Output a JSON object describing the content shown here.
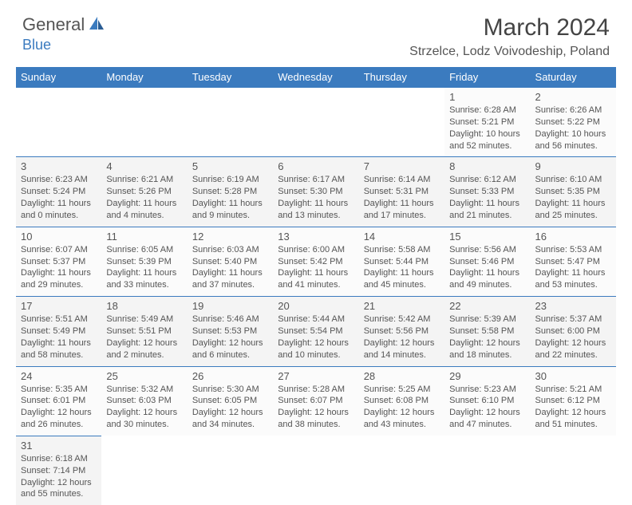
{
  "logo": {
    "general": "General",
    "blue": "Blue"
  },
  "title": "March 2024",
  "location": "Strzelce, Lodz Voivodeship, Poland",
  "colors": {
    "header_bg": "#3b7bbf",
    "header_fg": "#ffffff",
    "cell_border": "#3b7bbf",
    "cell_bg_odd": "#fbfbfb",
    "cell_bg_even": "#f4f4f4",
    "text": "#555555"
  },
  "day_headers": [
    "Sunday",
    "Monday",
    "Tuesday",
    "Wednesday",
    "Thursday",
    "Friday",
    "Saturday"
  ],
  "weeks": [
    [
      {
        "empty": true
      },
      {
        "empty": true
      },
      {
        "empty": true
      },
      {
        "empty": true
      },
      {
        "empty": true
      },
      {
        "n": "1",
        "sr": "Sunrise: 6:28 AM",
        "ss": "Sunset: 5:21 PM",
        "d1": "Daylight: 10 hours",
        "d2": "and 52 minutes."
      },
      {
        "n": "2",
        "sr": "Sunrise: 6:26 AM",
        "ss": "Sunset: 5:22 PM",
        "d1": "Daylight: 10 hours",
        "d2": "and 56 minutes."
      }
    ],
    [
      {
        "n": "3",
        "sr": "Sunrise: 6:23 AM",
        "ss": "Sunset: 5:24 PM",
        "d1": "Daylight: 11 hours",
        "d2": "and 0 minutes."
      },
      {
        "n": "4",
        "sr": "Sunrise: 6:21 AM",
        "ss": "Sunset: 5:26 PM",
        "d1": "Daylight: 11 hours",
        "d2": "and 4 minutes."
      },
      {
        "n": "5",
        "sr": "Sunrise: 6:19 AM",
        "ss": "Sunset: 5:28 PM",
        "d1": "Daylight: 11 hours",
        "d2": "and 9 minutes."
      },
      {
        "n": "6",
        "sr": "Sunrise: 6:17 AM",
        "ss": "Sunset: 5:30 PM",
        "d1": "Daylight: 11 hours",
        "d2": "and 13 minutes."
      },
      {
        "n": "7",
        "sr": "Sunrise: 6:14 AM",
        "ss": "Sunset: 5:31 PM",
        "d1": "Daylight: 11 hours",
        "d2": "and 17 minutes."
      },
      {
        "n": "8",
        "sr": "Sunrise: 6:12 AM",
        "ss": "Sunset: 5:33 PM",
        "d1": "Daylight: 11 hours",
        "d2": "and 21 minutes."
      },
      {
        "n": "9",
        "sr": "Sunrise: 6:10 AM",
        "ss": "Sunset: 5:35 PM",
        "d1": "Daylight: 11 hours",
        "d2": "and 25 minutes."
      }
    ],
    [
      {
        "n": "10",
        "sr": "Sunrise: 6:07 AM",
        "ss": "Sunset: 5:37 PM",
        "d1": "Daylight: 11 hours",
        "d2": "and 29 minutes."
      },
      {
        "n": "11",
        "sr": "Sunrise: 6:05 AM",
        "ss": "Sunset: 5:39 PM",
        "d1": "Daylight: 11 hours",
        "d2": "and 33 minutes."
      },
      {
        "n": "12",
        "sr": "Sunrise: 6:03 AM",
        "ss": "Sunset: 5:40 PM",
        "d1": "Daylight: 11 hours",
        "d2": "and 37 minutes."
      },
      {
        "n": "13",
        "sr": "Sunrise: 6:00 AM",
        "ss": "Sunset: 5:42 PM",
        "d1": "Daylight: 11 hours",
        "d2": "and 41 minutes."
      },
      {
        "n": "14",
        "sr": "Sunrise: 5:58 AM",
        "ss": "Sunset: 5:44 PM",
        "d1": "Daylight: 11 hours",
        "d2": "and 45 minutes."
      },
      {
        "n": "15",
        "sr": "Sunrise: 5:56 AM",
        "ss": "Sunset: 5:46 PM",
        "d1": "Daylight: 11 hours",
        "d2": "and 49 minutes."
      },
      {
        "n": "16",
        "sr": "Sunrise: 5:53 AM",
        "ss": "Sunset: 5:47 PM",
        "d1": "Daylight: 11 hours",
        "d2": "and 53 minutes."
      }
    ],
    [
      {
        "n": "17",
        "sr": "Sunrise: 5:51 AM",
        "ss": "Sunset: 5:49 PM",
        "d1": "Daylight: 11 hours",
        "d2": "and 58 minutes."
      },
      {
        "n": "18",
        "sr": "Sunrise: 5:49 AM",
        "ss": "Sunset: 5:51 PM",
        "d1": "Daylight: 12 hours",
        "d2": "and 2 minutes."
      },
      {
        "n": "19",
        "sr": "Sunrise: 5:46 AM",
        "ss": "Sunset: 5:53 PM",
        "d1": "Daylight: 12 hours",
        "d2": "and 6 minutes."
      },
      {
        "n": "20",
        "sr": "Sunrise: 5:44 AM",
        "ss": "Sunset: 5:54 PM",
        "d1": "Daylight: 12 hours",
        "d2": "and 10 minutes."
      },
      {
        "n": "21",
        "sr": "Sunrise: 5:42 AM",
        "ss": "Sunset: 5:56 PM",
        "d1": "Daylight: 12 hours",
        "d2": "and 14 minutes."
      },
      {
        "n": "22",
        "sr": "Sunrise: 5:39 AM",
        "ss": "Sunset: 5:58 PM",
        "d1": "Daylight: 12 hours",
        "d2": "and 18 minutes."
      },
      {
        "n": "23",
        "sr": "Sunrise: 5:37 AM",
        "ss": "Sunset: 6:00 PM",
        "d1": "Daylight: 12 hours",
        "d2": "and 22 minutes."
      }
    ],
    [
      {
        "n": "24",
        "sr": "Sunrise: 5:35 AM",
        "ss": "Sunset: 6:01 PM",
        "d1": "Daylight: 12 hours",
        "d2": "and 26 minutes."
      },
      {
        "n": "25",
        "sr": "Sunrise: 5:32 AM",
        "ss": "Sunset: 6:03 PM",
        "d1": "Daylight: 12 hours",
        "d2": "and 30 minutes."
      },
      {
        "n": "26",
        "sr": "Sunrise: 5:30 AM",
        "ss": "Sunset: 6:05 PM",
        "d1": "Daylight: 12 hours",
        "d2": "and 34 minutes."
      },
      {
        "n": "27",
        "sr": "Sunrise: 5:28 AM",
        "ss": "Sunset: 6:07 PM",
        "d1": "Daylight: 12 hours",
        "d2": "and 38 minutes."
      },
      {
        "n": "28",
        "sr": "Sunrise: 5:25 AM",
        "ss": "Sunset: 6:08 PM",
        "d1": "Daylight: 12 hours",
        "d2": "and 43 minutes."
      },
      {
        "n": "29",
        "sr": "Sunrise: 5:23 AM",
        "ss": "Sunset: 6:10 PM",
        "d1": "Daylight: 12 hours",
        "d2": "and 47 minutes."
      },
      {
        "n": "30",
        "sr": "Sunrise: 5:21 AM",
        "ss": "Sunset: 6:12 PM",
        "d1": "Daylight: 12 hours",
        "d2": "and 51 minutes."
      }
    ],
    [
      {
        "n": "31",
        "sr": "Sunrise: 6:18 AM",
        "ss": "Sunset: 7:14 PM",
        "d1": "Daylight: 12 hours",
        "d2": "and 55 minutes."
      },
      {
        "empty": true
      },
      {
        "empty": true
      },
      {
        "empty": true
      },
      {
        "empty": true
      },
      {
        "empty": true
      },
      {
        "empty": true
      }
    ]
  ]
}
